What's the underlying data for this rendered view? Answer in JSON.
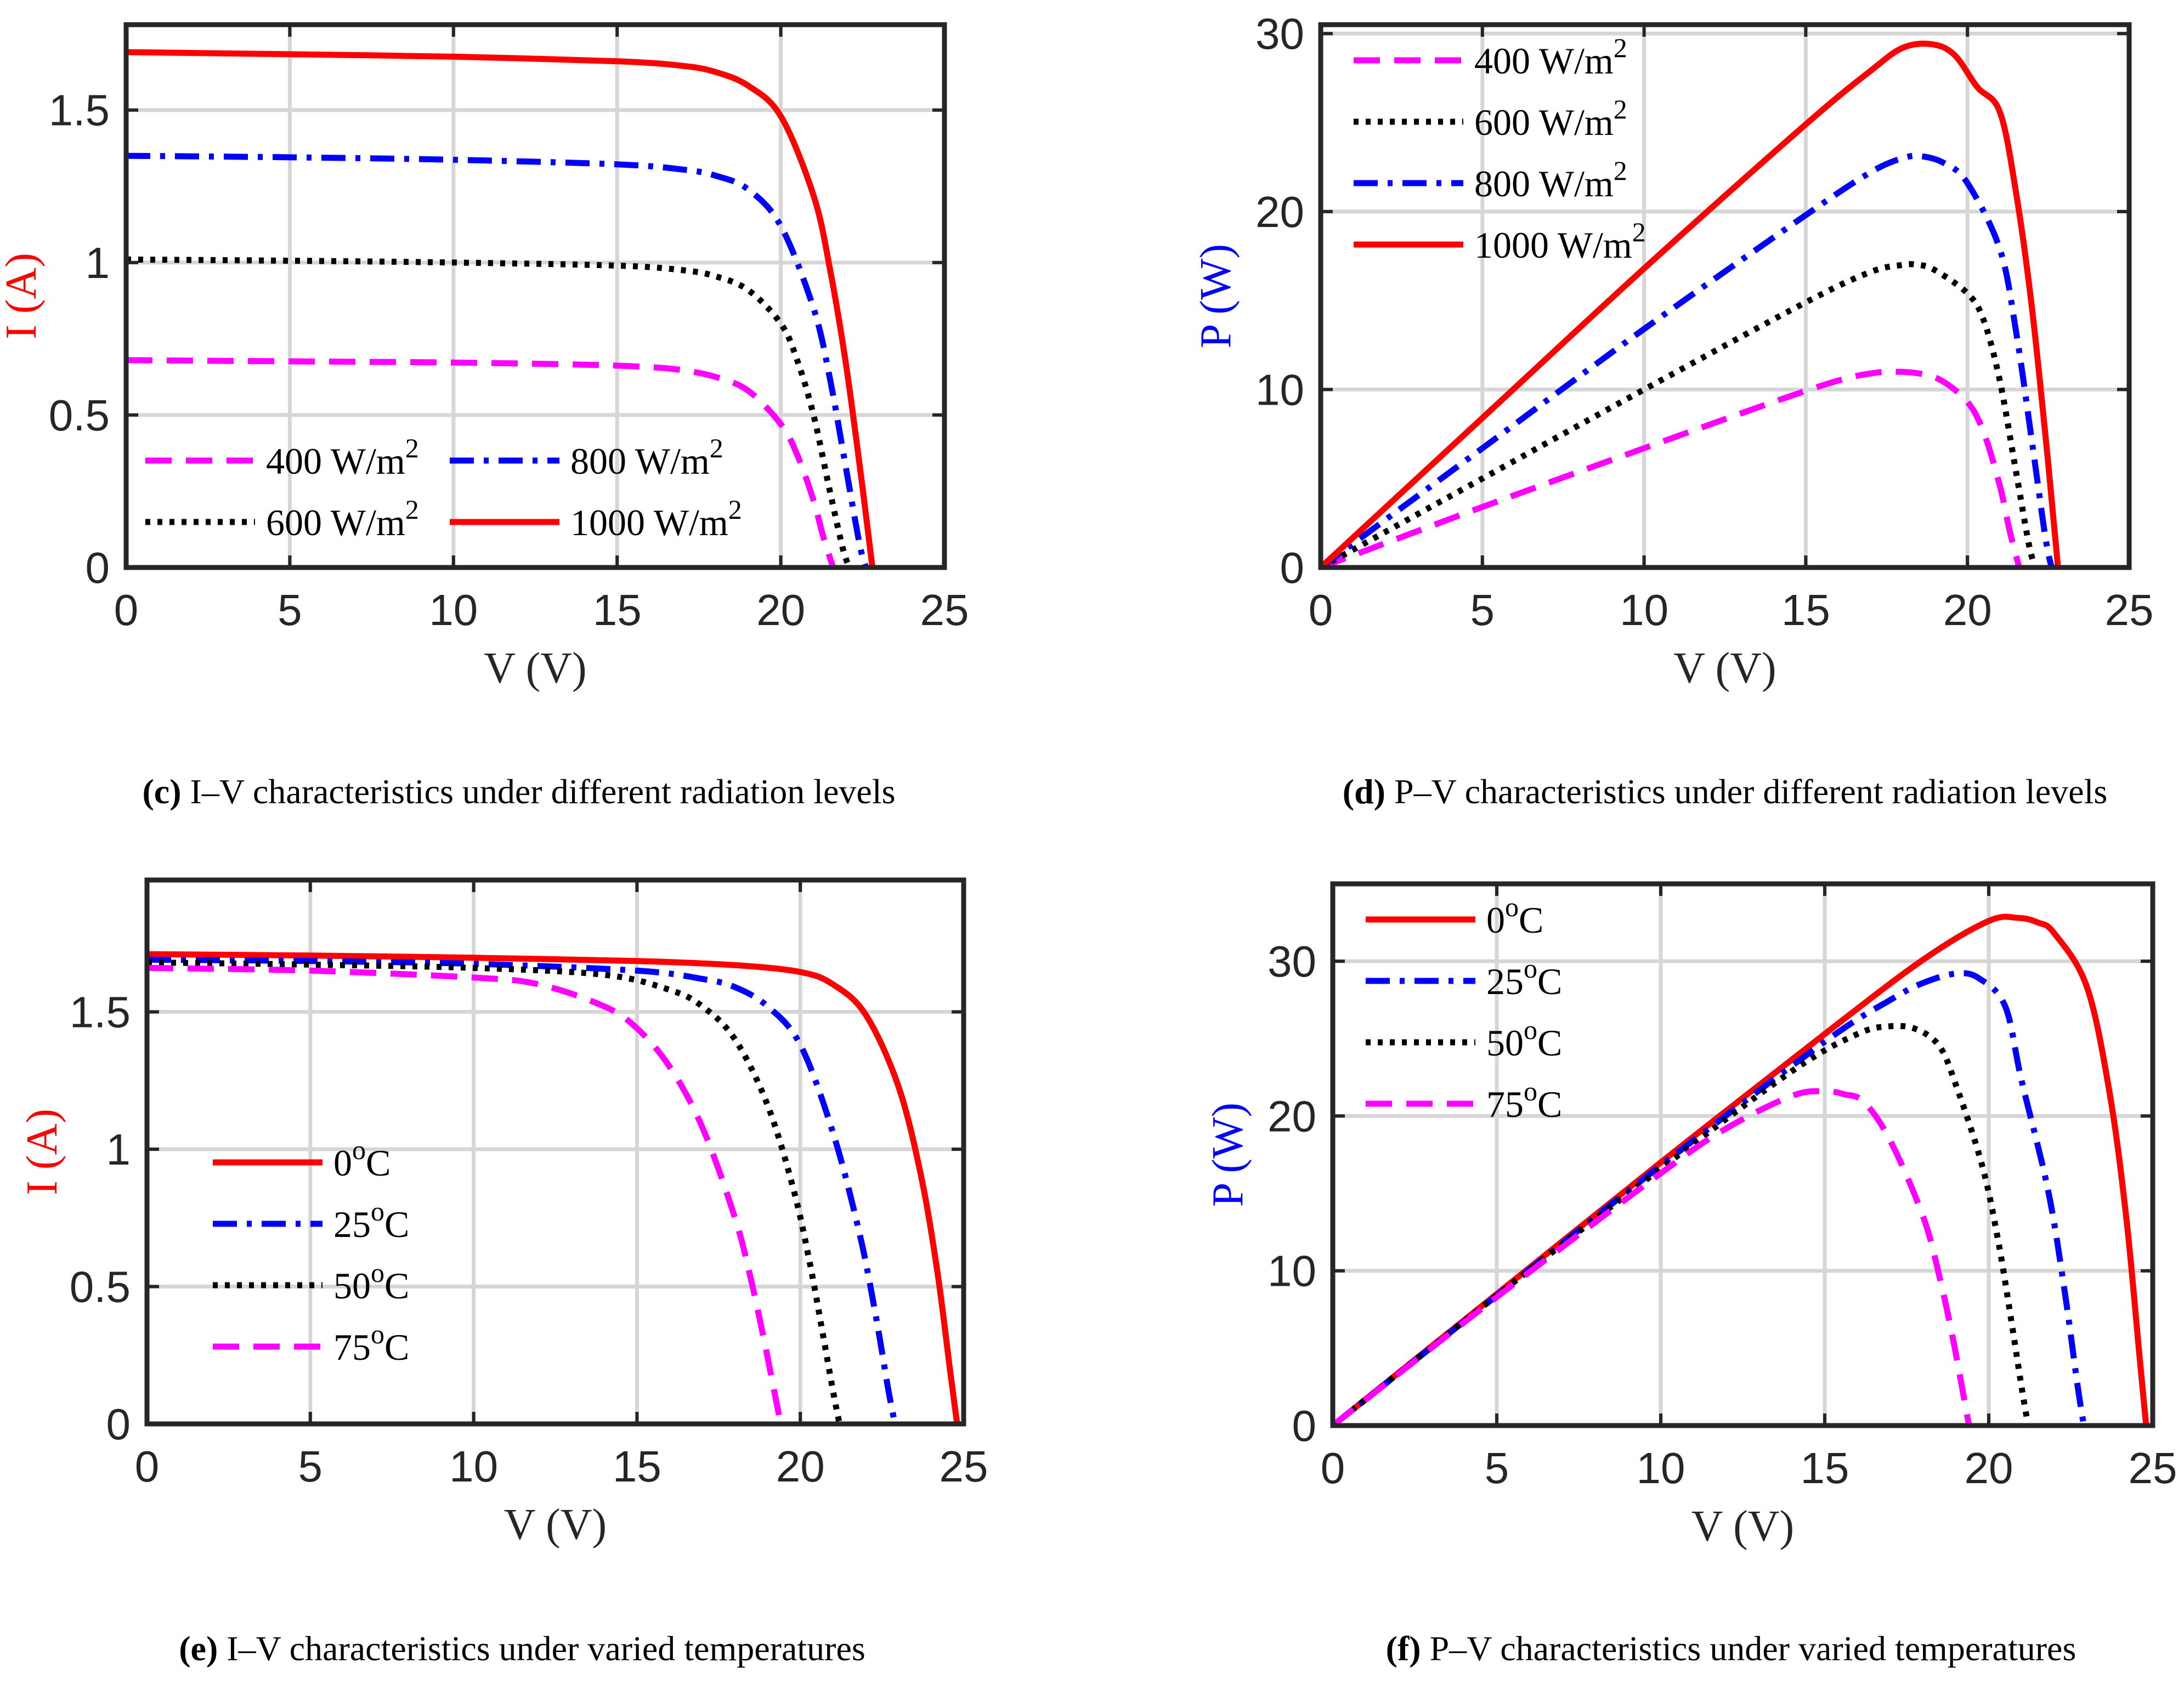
{
  "panels": [
    {
      "caption_letter": "(c)",
      "caption_text": " I–V characteristics under different radiation levels",
      "chart_data": {
        "type": "line",
        "xlabel": "V (V)",
        "ylabel": "I (A)",
        "ylabel_color": "#ff0000",
        "xlim": [
          0,
          25
        ],
        "ylim": [
          0,
          1.78
        ],
        "xticks": [
          0,
          5,
          10,
          15,
          20,
          25
        ],
        "xtick_labels": [
          "0",
          "5",
          "10",
          "15",
          "20",
          "25"
        ],
        "yticks": [
          0,
          0.5,
          1,
          1.5
        ],
        "ytick_labels": [
          "0",
          "0.5",
          "1",
          "1.5"
        ],
        "grid": true,
        "legend_location": "bottom-left, two columns",
        "series": [
          {
            "label_main": "400 W/m",
            "label_sup": "2",
            "color": "#ff00ff",
            "style": "dash",
            "x": [
              0,
              5,
              10,
              14,
              16,
              17,
              18,
              19,
              20,
              20.5,
              21,
              21.3,
              21.6
            ],
            "y": [
              0.68,
              0.676,
              0.672,
              0.665,
              0.657,
              0.647,
              0.625,
              0.58,
              0.47,
              0.37,
              0.22,
              0.1,
              0
            ]
          },
          {
            "label_main": "600 W/m",
            "label_sup": "2",
            "color": "#000000",
            "style": "dot",
            "x": [
              0,
              5,
              10,
              15,
              17,
              18,
              19,
              20,
              20.5,
              21,
              21.5,
              21.9,
              22.1
            ],
            "y": [
              1.01,
              1.006,
              1.0,
              0.99,
              0.975,
              0.955,
              0.91,
              0.8,
              0.68,
              0.5,
              0.25,
              0.06,
              0
            ]
          },
          {
            "label_main": "800 W/m",
            "label_sup": "2",
            "color": "#0000ff",
            "style": "dashdot",
            "x": [
              0,
              5,
              10,
              15,
              17,
              18,
              19,
              20,
              21,
              21.5,
              22,
              22.4,
              22.6
            ],
            "y": [
              1.35,
              1.345,
              1.337,
              1.322,
              1.305,
              1.285,
              1.24,
              1.12,
              0.85,
              0.62,
              0.32,
              0.08,
              0
            ]
          },
          {
            "label_main": "1000 W/m",
            "label_sup": "2",
            "color": "#ff0000",
            "style": "solid",
            "x": [
              0,
              5,
              10,
              15,
              17,
              18,
              19,
              20,
              21,
              21.5,
              22,
              22.5,
              22.8
            ],
            "y": [
              1.69,
              1.683,
              1.675,
              1.66,
              1.645,
              1.625,
              1.58,
              1.48,
              1.22,
              0.98,
              0.66,
              0.26,
              0
            ]
          }
        ]
      }
    },
    {
      "caption_letter": "(d)",
      "caption_text": " P–V characteristics under different radiation levels",
      "chart_data": {
        "type": "line",
        "xlabel": "V (V)",
        "ylabel": "P (W)",
        "ylabel_color": "#0000ff",
        "xlim": [
          0,
          25
        ],
        "ylim": [
          0,
          30.5
        ],
        "xticks": [
          0,
          5,
          10,
          15,
          20,
          25
        ],
        "xtick_labels": [
          "0",
          "5",
          "10",
          "15",
          "20",
          "25"
        ],
        "yticks": [
          0,
          10,
          20,
          30
        ],
        "ytick_labels": [
          "0",
          "10",
          "20",
          "30"
        ],
        "grid": true,
        "legend_location": "top-left",
        "series": [
          {
            "label_main": "400 W/m",
            "label_sup": "2",
            "color": "#ff00ff",
            "style": "dash",
            "x": [
              0,
              5,
              10,
              14,
              16,
              17,
              17.7,
              18.5,
              19.2,
              20,
              20.5,
              21,
              21.3,
              21.6
            ],
            "y": [
              0,
              3.4,
              6.7,
              9.3,
              10.5,
              10.9,
              11.0,
              10.9,
              10.5,
              9.3,
              7.6,
              4.6,
              2.1,
              0
            ]
          },
          {
            "label_main": "600 W/m",
            "label_sup": "2",
            "color": "#000000",
            "style": "dot",
            "x": [
              0,
              5,
              10,
              15,
              17,
              18,
              18.5,
              19,
              20,
              20.5,
              21,
              21.5,
              21.9,
              22.1
            ],
            "y": [
              0,
              5.0,
              10.0,
              14.9,
              16.6,
              17.0,
              17.0,
              16.7,
              15.4,
              13.9,
              10.5,
              5.4,
              1.3,
              0
            ]
          },
          {
            "label_main": "800 W/m",
            "label_sup": "2",
            "color": "#0000ff",
            "style": "dashdot",
            "x": [
              0,
              5,
              10,
              15,
              17,
              18,
              18.6,
              19.3,
              20,
              21,
              21.5,
              22,
              22.4,
              22.6
            ],
            "y": [
              0,
              6.7,
              13.4,
              19.8,
              22.2,
              23.0,
              23.1,
              22.7,
              21.6,
              17.9,
              13.3,
              7.0,
              1.8,
              0
            ]
          },
          {
            "label_main": "1000 W/m",
            "label_sup": "2",
            "color": "#ff0000",
            "style": "solid",
            "x": [
              0,
              5,
              10,
              15,
              17,
              18,
              18.9,
              19.6,
              20.3,
              21,
              21.5,
              22,
              22.5,
              22.8
            ],
            "y": [
              0,
              8.4,
              16.8,
              24.9,
              27.9,
              29.2,
              29.4,
              28.8,
              27.0,
              25.6,
              21.1,
              14.5,
              5.8,
              0
            ]
          }
        ]
      }
    },
    {
      "caption_letter": "(e)",
      "caption_text": " I–V characteristics under varied temperatures",
      "chart_data": {
        "type": "line",
        "xlabel": "V (V)",
        "ylabel": "I (A)",
        "ylabel_color": "#ff0000",
        "xlim": [
          0,
          25
        ],
        "ylim": [
          0,
          1.98
        ],
        "xticks": [
          0,
          5,
          10,
          15,
          20,
          25
        ],
        "xtick_labels": [
          "0",
          "5",
          "10",
          "15",
          "20",
          "25"
        ],
        "yticks": [
          0,
          0.5,
          1,
          1.5
        ],
        "ytick_labels": [
          "0",
          "0.5",
          "1",
          "1.5"
        ],
        "grid": true,
        "legend_location": "center-left",
        "series": [
          {
            "label_main": "0",
            "label_sup": "o",
            "label_tail": "C",
            "color": "#ff0000",
            "style": "solid",
            "x": [
              0,
              5,
              10,
              15,
              18,
              20,
              21,
              22,
              23,
              23.7,
              24.2,
              24.6,
              24.8
            ],
            "y": [
              1.71,
              1.705,
              1.697,
              1.685,
              1.67,
              1.645,
              1.6,
              1.49,
              1.23,
              0.9,
              0.55,
              0.18,
              0
            ]
          },
          {
            "label_main": "25",
            "label_sup": "o",
            "label_tail": "C",
            "color": "#0000ff",
            "style": "dashdot",
            "x": [
              0,
              5,
              10,
              15,
              17,
              18,
              19,
              20,
              21,
              21.8,
              22.3,
              22.7,
              22.9
            ],
            "y": [
              1.69,
              1.685,
              1.675,
              1.65,
              1.62,
              1.59,
              1.52,
              1.38,
              1.06,
              0.7,
              0.4,
              0.12,
              0
            ]
          },
          {
            "label_main": "50",
            "label_sup": "o",
            "label_tail": "C",
            "color": "#000000",
            "style": "dot",
            "x": [
              0,
              5,
              10,
              14,
              16,
              17,
              18,
              19,
              19.8,
              20.3,
              20.7,
              21,
              21.2
            ],
            "y": [
              1.68,
              1.672,
              1.66,
              1.635,
              1.58,
              1.52,
              1.4,
              1.16,
              0.85,
              0.58,
              0.32,
              0.12,
              0
            ]
          },
          {
            "label_main": "75",
            "label_sup": "o",
            "label_tail": "C",
            "color": "#ff00ff",
            "style": "dash",
            "x": [
              0,
              5,
              10,
              12,
              14,
              15,
              16,
              17,
              18,
              18.5,
              18.9,
              19.2,
              19.4
            ],
            "y": [
              1.66,
              1.65,
              1.625,
              1.6,
              1.52,
              1.44,
              1.3,
              1.08,
              0.75,
              0.52,
              0.3,
              0.12,
              0
            ]
          }
        ]
      }
    },
    {
      "caption_letter": "(f)",
      "caption_text": " P–V characteristics under varied temperatures",
      "chart_data": {
        "type": "line",
        "xlabel": "V (V)",
        "ylabel": "P (W)",
        "ylabel_color": "#0000ff",
        "xlim": [
          0,
          25
        ],
        "ylim": [
          0,
          35
        ],
        "xticks": [
          0,
          5,
          10,
          15,
          20,
          25
        ],
        "xtick_labels": [
          "0",
          "5",
          "10",
          "15",
          "20",
          "25"
        ],
        "yticks": [
          0,
          10,
          20,
          30
        ],
        "ytick_labels": [
          "0",
          "10",
          "20",
          "30"
        ],
        "grid": true,
        "legend_location": "top-left",
        "series": [
          {
            "label_main": "0",
            "label_sup": "o",
            "label_tail": "C",
            "color": "#ff0000",
            "style": "solid",
            "x": [
              0,
              5,
              10,
              15,
              18,
              20,
              20.9,
              21.5,
              22,
              23,
              23.7,
              24.2,
              24.6,
              24.8
            ],
            "y": [
              0,
              8.5,
              17.0,
              25.3,
              30.1,
              32.6,
              32.8,
              32.5,
              31.8,
              28.3,
              21.3,
              13.3,
              4.4,
              0
            ]
          },
          {
            "label_main": "25",
            "label_sup": "o",
            "label_tail": "C",
            "color": "#0000ff",
            "style": "dashdot",
            "x": [
              0,
              5,
              10,
              15,
              17,
              18,
              19,
              19.7,
              20.5,
              21,
              21.8,
              22.3,
              22.7,
              22.9
            ],
            "y": [
              0,
              8.4,
              16.8,
              24.8,
              27.5,
              28.6,
              29.2,
              28.9,
              27.1,
              22.3,
              15.3,
              8.9,
              2.7,
              0
            ]
          },
          {
            "label_main": "50",
            "label_sup": "o",
            "label_tail": "C",
            "color": "#000000",
            "style": "dot",
            "x": [
              0,
              5,
              10,
              14,
              16,
              17,
              17.8,
              18.5,
              19,
              19.8,
              20.3,
              20.7,
              21,
              21.2
            ],
            "y": [
              0,
              8.4,
              16.6,
              22.9,
              25.3,
              25.8,
              25.6,
              24.5,
              22.0,
              16.8,
              11.8,
              6.6,
              2.5,
              0
            ]
          },
          {
            "label_main": "75",
            "label_sup": "o",
            "label_tail": "C",
            "color": "#ff00ff",
            "style": "dash",
            "x": [
              0,
              5,
              10,
              12,
              14,
              15,
              15.6,
              16.2,
              17,
              18,
              18.5,
              18.9,
              19.2,
              19.4
            ],
            "y": [
              0,
              8.3,
              16.3,
              19.2,
              21.3,
              21.6,
              21.4,
              20.9,
              18.4,
              13.5,
              9.6,
              5.7,
              2.3,
              0
            ]
          }
        ]
      }
    }
  ]
}
